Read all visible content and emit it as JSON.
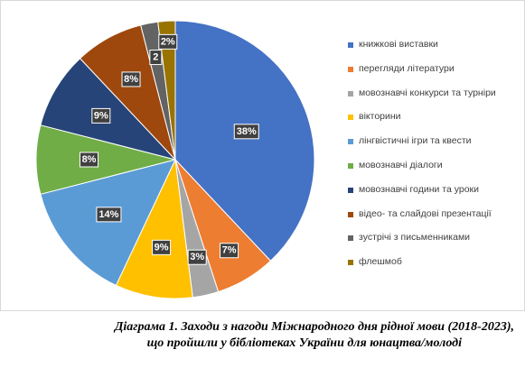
{
  "chart_data": {
    "type": "pie",
    "caption_line1": "Діаграма 1. Заходи з нагоди Міжнародного дня рідної мови (2018-2023),",
    "caption_line2": "що пройшли у бібліотеках України для юнацтва/молоді",
    "legend_position": "right",
    "series": [
      {
        "name": "книжкові виставки",
        "value": 38,
        "label": "38%",
        "color": "#4472c4"
      },
      {
        "name": "перегляди літератури",
        "value": 7,
        "label": "7%",
        "color": "#ed7d31"
      },
      {
        "name": "мовознавчі конкурси та турніри",
        "value": 3,
        "label": "3%",
        "color": "#a5a5a5"
      },
      {
        "name": "вікторини",
        "value": 9,
        "label": "9%",
        "color": "#ffc000"
      },
      {
        "name": "лінгвістичні ігри та квести",
        "value": 14,
        "label": "14%",
        "color": "#5b9bd5"
      },
      {
        "name": "мовознавчі діалоги",
        "value": 8,
        "label": "8%",
        "color": "#70ad47"
      },
      {
        "name": "мовознавчі години та уроки",
        "value": 9,
        "label": "9%",
        "color": "#264478"
      },
      {
        "name": "відео- та слайдові презентації",
        "value": 8,
        "label": "8%",
        "color": "#9e480e"
      },
      {
        "name": "зустрічі з письменниками",
        "value": 2,
        "label": "2",
        "color": "#636363"
      },
      {
        "name": "флешмоб",
        "value": 2,
        "label": "2%",
        "color": "#997300"
      }
    ]
  }
}
